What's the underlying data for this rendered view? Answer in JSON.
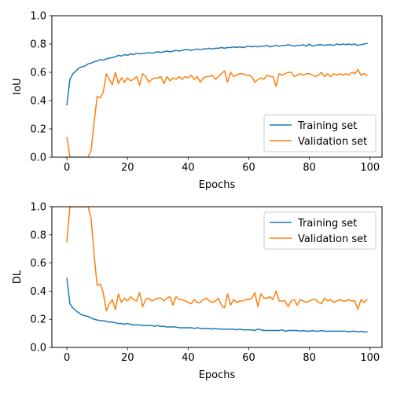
{
  "chart_data": [
    {
      "type": "line",
      "xlabel": "Epochs",
      "ylabel": "IoU",
      "xlim": [
        -4.95,
        103.95
      ],
      "ylim": [
        0,
        1
      ],
      "xticks": [
        "0",
        "20",
        "40",
        "60",
        "80",
        "100"
      ],
      "yticks": [
        "0.0",
        "0.2",
        "0.4",
        "0.6",
        "0.8",
        "1.0"
      ],
      "legend_position": "lower-right",
      "grid": false,
      "x": [
        0,
        1,
        2,
        3,
        4,
        5,
        6,
        7,
        8,
        9,
        10,
        11,
        12,
        13,
        14,
        15,
        16,
        17,
        18,
        19,
        20,
        21,
        22,
        23,
        24,
        25,
        26,
        27,
        28,
        29,
        30,
        31,
        32,
        33,
        34,
        35,
        36,
        37,
        38,
        39,
        40,
        41,
        42,
        43,
        44,
        45,
        46,
        47,
        48,
        49,
        50,
        51,
        52,
        53,
        54,
        55,
        56,
        57,
        58,
        59,
        60,
        61,
        62,
        63,
        64,
        65,
        66,
        67,
        68,
        69,
        70,
        71,
        72,
        73,
        74,
        75,
        76,
        77,
        78,
        79,
        80,
        81,
        82,
        83,
        84,
        85,
        86,
        87,
        88,
        89,
        90,
        91,
        92,
        93,
        94,
        95,
        96,
        97,
        98,
        99
      ],
      "series": [
        {
          "name": "Training set",
          "color": "#1f77b4",
          "values": [
            0.37,
            0.55,
            0.59,
            0.61,
            0.63,
            0.64,
            0.645,
            0.66,
            0.665,
            0.675,
            0.68,
            0.69,
            0.685,
            0.695,
            0.7,
            0.705,
            0.71,
            0.72,
            0.715,
            0.725,
            0.72,
            0.73,
            0.725,
            0.735,
            0.73,
            0.735,
            0.735,
            0.74,
            0.735,
            0.74,
            0.745,
            0.74,
            0.745,
            0.75,
            0.745,
            0.75,
            0.755,
            0.75,
            0.755,
            0.76,
            0.76,
            0.755,
            0.76,
            0.765,
            0.76,
            0.765,
            0.765,
            0.77,
            0.765,
            0.77,
            0.77,
            0.775,
            0.77,
            0.775,
            0.775,
            0.78,
            0.775,
            0.78,
            0.775,
            0.78,
            0.785,
            0.78,
            0.785,
            0.78,
            0.785,
            0.785,
            0.79,
            0.78,
            0.785,
            0.79,
            0.785,
            0.79,
            0.79,
            0.795,
            0.79,
            0.785,
            0.79,
            0.79,
            0.795,
            0.785,
            0.8,
            0.785,
            0.79,
            0.795,
            0.795,
            0.79,
            0.795,
            0.795,
            0.79,
            0.8,
            0.795,
            0.8,
            0.795,
            0.8,
            0.795,
            0.8,
            0.79,
            0.795,
            0.8,
            0.805
          ]
        },
        {
          "name": "Validation set",
          "color": "#ff7f0e",
          "values": [
            0.14,
            0,
            0,
            0,
            0,
            0,
            0,
            0,
            0.05,
            0.25,
            0.43,
            0.42,
            0.46,
            0.59,
            0.55,
            0.51,
            0.6,
            0.52,
            0.56,
            0.53,
            0.56,
            0.54,
            0.55,
            0.57,
            0.51,
            0.59,
            0.57,
            0.53,
            0.55,
            0.56,
            0.56,
            0.57,
            0.52,
            0.57,
            0.54,
            0.56,
            0.55,
            0.57,
            0.55,
            0.57,
            0.56,
            0.58,
            0.55,
            0.57,
            0.53,
            0.56,
            0.57,
            0.57,
            0.58,
            0.55,
            0.57,
            0.59,
            0.61,
            0.53,
            0.6,
            0.57,
            0.58,
            0.59,
            0.59,
            0.58,
            0.58,
            0.57,
            0.53,
            0.55,
            0.56,
            0.55,
            0.58,
            0.57,
            0.57,
            0.5,
            0.59,
            0.58,
            0.59,
            0.6,
            0.6,
            0.57,
            0.58,
            0.59,
            0.58,
            0.59,
            0.59,
            0.58,
            0.57,
            0.58,
            0.6,
            0.57,
            0.59,
            0.57,
            0.59,
            0.58,
            0.59,
            0.58,
            0.59,
            0.58,
            0.6,
            0.59,
            0.62,
            0.58,
            0.59,
            0.58
          ]
        }
      ]
    },
    {
      "type": "line",
      "xlabel": "Epochs",
      "ylabel": "DL",
      "xlim": [
        -4.95,
        103.95
      ],
      "ylim": [
        0,
        1
      ],
      "xticks": [
        "0",
        "20",
        "40",
        "60",
        "80",
        "100"
      ],
      "yticks": [
        "0.0",
        "0.2",
        "0.4",
        "0.6",
        "0.8",
        "1.0"
      ],
      "legend_position": "upper-right",
      "grid": false,
      "x": [
        0,
        1,
        2,
        3,
        4,
        5,
        6,
        7,
        8,
        9,
        10,
        11,
        12,
        13,
        14,
        15,
        16,
        17,
        18,
        19,
        20,
        21,
        22,
        23,
        24,
        25,
        26,
        27,
        28,
        29,
        30,
        31,
        32,
        33,
        34,
        35,
        36,
        37,
        38,
        39,
        40,
        41,
        42,
        43,
        44,
        45,
        46,
        47,
        48,
        49,
        50,
        51,
        52,
        53,
        54,
        55,
        56,
        57,
        58,
        59,
        60,
        61,
        62,
        63,
        64,
        65,
        66,
        67,
        68,
        69,
        70,
        71,
        72,
        73,
        74,
        75,
        76,
        77,
        78,
        79,
        80,
        81,
        82,
        83,
        84,
        85,
        86,
        87,
        88,
        89,
        90,
        91,
        92,
        93,
        94,
        95,
        96,
        97,
        98,
        99
      ],
      "series": [
        {
          "name": "Training set",
          "color": "#1f77b4",
          "values": [
            0.49,
            0.31,
            0.28,
            0.26,
            0.245,
            0.23,
            0.225,
            0.22,
            0.21,
            0.2,
            0.195,
            0.19,
            0.19,
            0.185,
            0.18,
            0.18,
            0.175,
            0.17,
            0.17,
            0.165,
            0.17,
            0.165,
            0.16,
            0.16,
            0.16,
            0.155,
            0.155,
            0.155,
            0.155,
            0.15,
            0.155,
            0.15,
            0.15,
            0.145,
            0.145,
            0.145,
            0.145,
            0.14,
            0.14,
            0.14,
            0.14,
            0.14,
            0.135,
            0.14,
            0.135,
            0.135,
            0.135,
            0.135,
            0.13,
            0.135,
            0.13,
            0.13,
            0.13,
            0.13,
            0.13,
            0.13,
            0.125,
            0.13,
            0.125,
            0.125,
            0.125,
            0.125,
            0.12,
            0.13,
            0.125,
            0.12,
            0.12,
            0.12,
            0.12,
            0.12,
            0.12,
            0.125,
            0.115,
            0.12,
            0.12,
            0.12,
            0.12,
            0.115,
            0.12,
            0.115,
            0.115,
            0.12,
            0.115,
            0.115,
            0.12,
            0.115,
            0.115,
            0.115,
            0.115,
            0.115,
            0.115,
            0.115,
            0.115,
            0.11,
            0.115,
            0.115,
            0.11,
            0.115,
            0.11,
            0.11
          ]
        },
        {
          "name": "Validation set",
          "color": "#ff7f0e",
          "values": [
            0.75,
            1.0,
            1.0,
            1.0,
            1.0,
            1.0,
            1.0,
            1.0,
            0.92,
            0.65,
            0.44,
            0.45,
            0.39,
            0.26,
            0.31,
            0.34,
            0.27,
            0.38,
            0.32,
            0.35,
            0.33,
            0.36,
            0.34,
            0.33,
            0.39,
            0.29,
            0.34,
            0.35,
            0.33,
            0.34,
            0.35,
            0.35,
            0.33,
            0.35,
            0.36,
            0.3,
            0.36,
            0.34,
            0.34,
            0.33,
            0.32,
            0.31,
            0.34,
            0.32,
            0.32,
            0.34,
            0.35,
            0.33,
            0.32,
            0.33,
            0.35,
            0.3,
            0.28,
            0.38,
            0.3,
            0.34,
            0.32,
            0.33,
            0.33,
            0.34,
            0.34,
            0.35,
            0.39,
            0.29,
            0.38,
            0.35,
            0.35,
            0.36,
            0.34,
            0.4,
            0.33,
            0.33,
            0.33,
            0.29,
            0.33,
            0.34,
            0.3,
            0.34,
            0.33,
            0.32,
            0.33,
            0.34,
            0.34,
            0.32,
            0.31,
            0.35,
            0.33,
            0.34,
            0.32,
            0.33,
            0.34,
            0.33,
            0.33,
            0.34,
            0.33,
            0.33,
            0.27,
            0.34,
            0.32,
            0.34
          ]
        }
      ]
    }
  ]
}
